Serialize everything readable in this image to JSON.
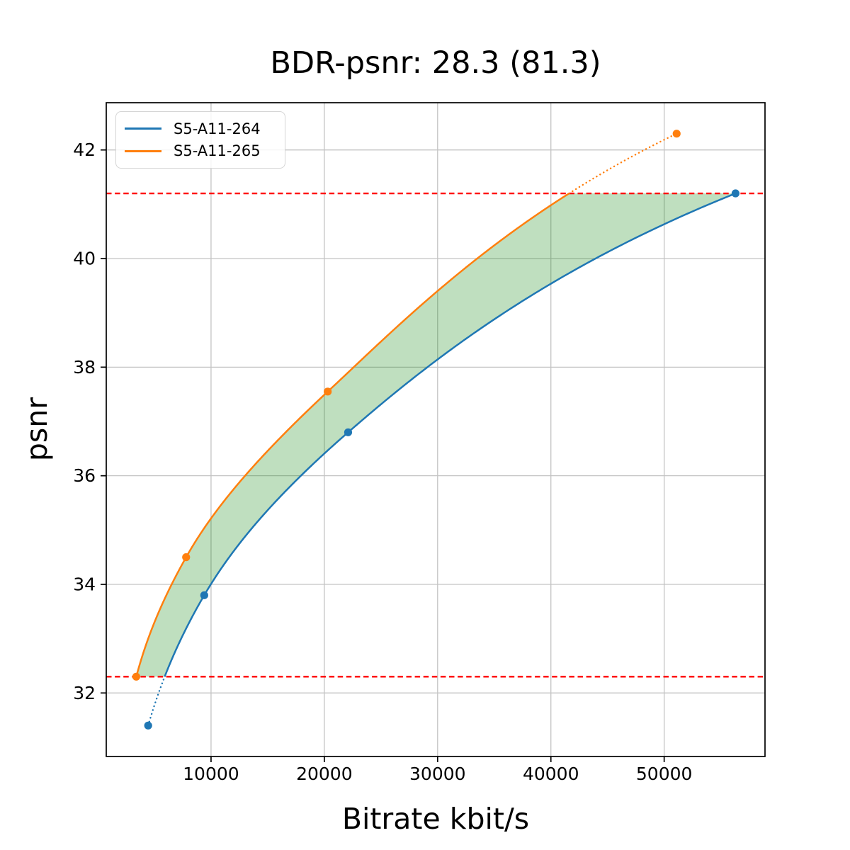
{
  "chart_data": {
    "type": "line",
    "title": "BDR-psnr: 28.3 (81.3)",
    "xlabel": "Bitrate kbit/s",
    "ylabel": "psnr",
    "xlim": [
      750,
      58900
    ],
    "ylim": [
      30.83,
      42.87
    ],
    "x_ticks": [
      10000,
      20000,
      30000,
      40000,
      50000
    ],
    "x_tick_labels": [
      "10000",
      "20000",
      "30000",
      "40000",
      "50000"
    ],
    "y_ticks": [
      32,
      34,
      36,
      38,
      40,
      42
    ],
    "y_tick_labels": [
      "32",
      "34",
      "36",
      "38",
      "40",
      "42"
    ],
    "grid": true,
    "grid_color": "#c3c3c3",
    "legend_position": "upper left",
    "interpolation": "pchip-log-x",
    "series": [
      {
        "name": "S5-A11-264",
        "color": "#1f77b4",
        "x": [
          4450,
          9400,
          22100,
          56300
        ],
        "y": [
          31.4,
          33.8,
          36.8,
          41.2
        ]
      },
      {
        "name": "S5-A11-265",
        "color": "#ff7f0e",
        "x": [
          3400,
          7800,
          20300,
          51100
        ],
        "y": [
          32.3,
          34.5,
          37.55,
          42.3
        ]
      }
    ],
    "reference_lines": {
      "color": "#ff0000",
      "style": "dashed",
      "y_values": [
        32.3,
        41.2
      ]
    },
    "shaded_region": {
      "color": "#008000",
      "opacity": 0.25,
      "between": [
        "S5-A11-265",
        "S5-A11-264"
      ],
      "y_range": [
        32.3,
        41.2
      ]
    }
  }
}
